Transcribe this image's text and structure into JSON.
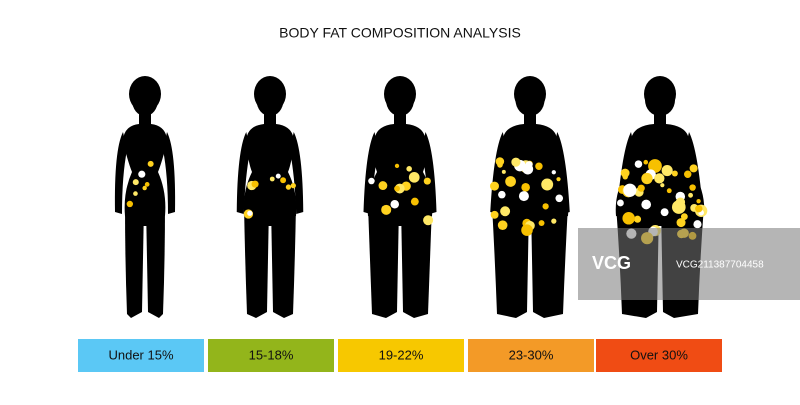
{
  "title": "BODY FAT COMPOSITION ANALYSIS",
  "categories": [
    {
      "label": "Under 15%",
      "color": "#5bc8f5"
    },
    {
      "label": "15-18%",
      "color": "#93b51b"
    },
    {
      "label": "19-22%",
      "color": "#f7c800"
    },
    {
      "label": "23-30%",
      "color": "#f39a27"
    },
    {
      "label": "Over 30%",
      "color": "#f04c14"
    }
  ],
  "watermark": {
    "logo": "VCG",
    "id": "VCG211387704458"
  }
}
